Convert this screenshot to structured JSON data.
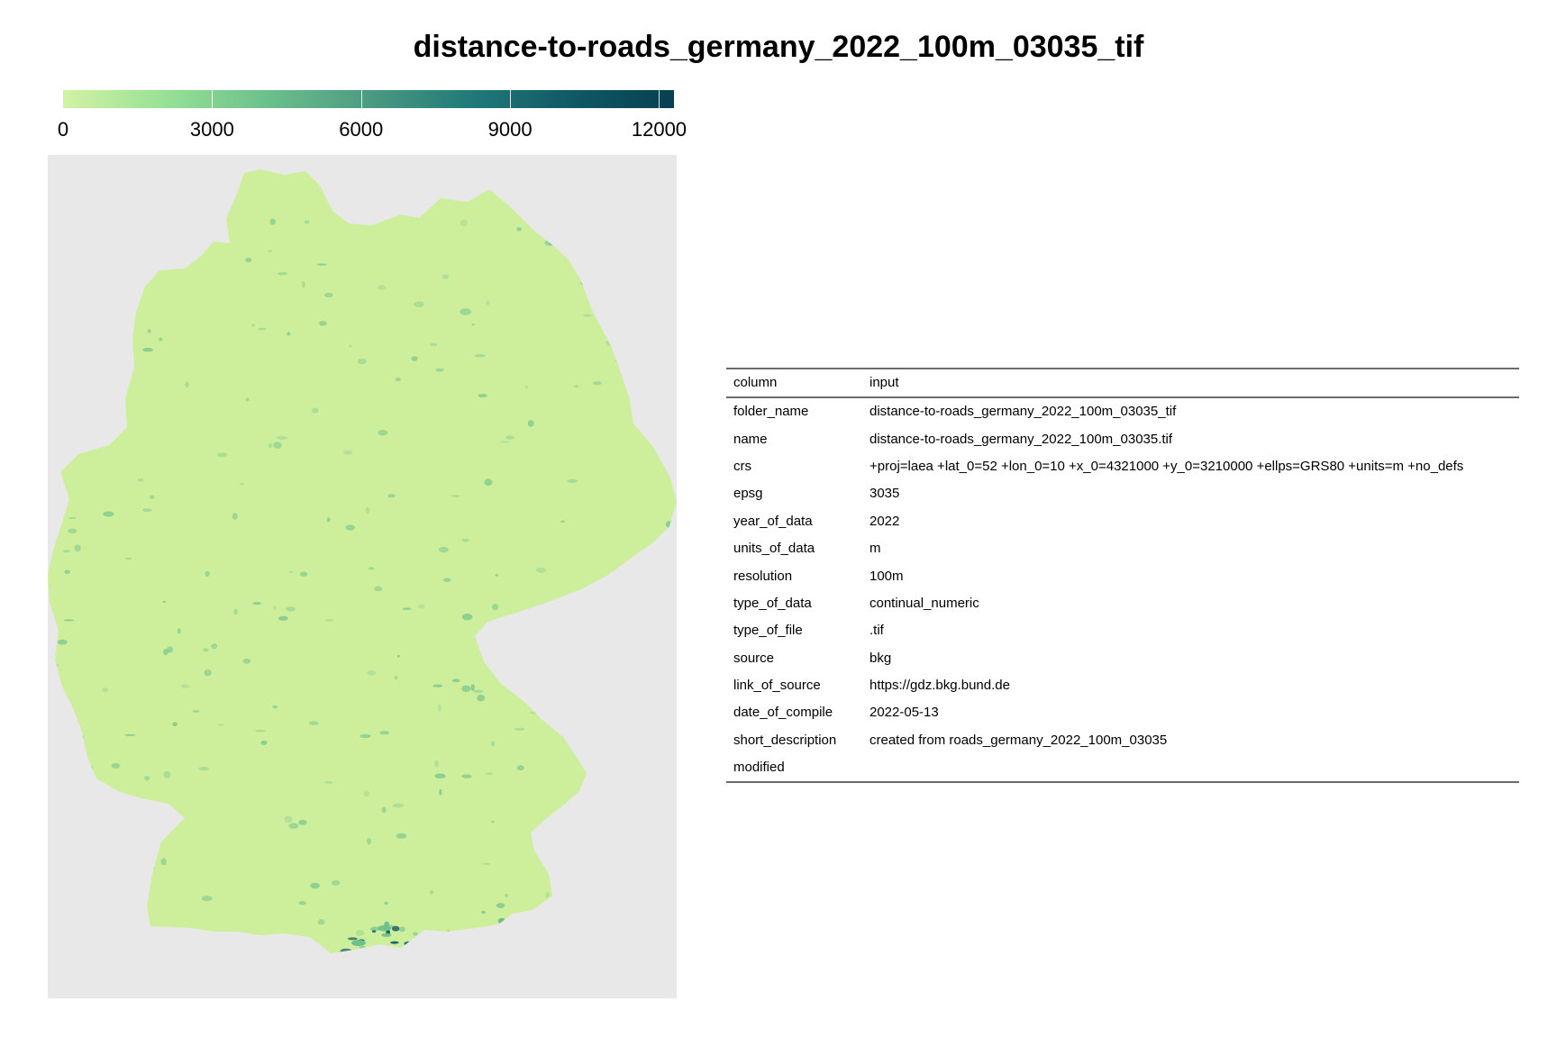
{
  "title": "distance-to-roads_germany_2022_100m_03035_tif",
  "legend": {
    "min": 0,
    "max": 12300,
    "ticks": [
      "0",
      "3000",
      "6000",
      "9000",
      "12000"
    ],
    "tick_values": [
      0,
      3000,
      6000,
      9000,
      12000
    ],
    "colors": [
      "#d3f2a3",
      "#97e196",
      "#6cc08b",
      "#4c9b82",
      "#217a79",
      "#105965",
      "#074050"
    ]
  },
  "map": {
    "background_color": "#e8e8e8",
    "fill_color": "#cdef9c",
    "accent_color": "#6cc08b",
    "dark_color": "#105965"
  },
  "table": {
    "headers": [
      "column",
      "input"
    ],
    "rows": [
      [
        "folder_name",
        "distance-to-roads_germany_2022_100m_03035_tif"
      ],
      [
        "name",
        "distance-to-roads_germany_2022_100m_03035.tif"
      ],
      [
        "crs",
        "+proj=laea +lat_0=52 +lon_0=10 +x_0=4321000 +y_0=3210000 +ellps=GRS80 +units=m +no_defs"
      ],
      [
        "epsg",
        "3035"
      ],
      [
        "year_of_data",
        "2022"
      ],
      [
        "units_of_data",
        "m"
      ],
      [
        "resolution",
        "100m"
      ],
      [
        "type_of_data",
        "continual_numeric"
      ],
      [
        "type_of_file",
        ".tif"
      ],
      [
        "source",
        "bkg"
      ],
      [
        "link_of_source",
        "https://gdz.bkg.bund.de"
      ],
      [
        "date_of_compile",
        "2022-05-13"
      ],
      [
        "short_description",
        "created from roads_germany_2022_100m_03035"
      ],
      [
        "modified",
        ""
      ]
    ]
  }
}
